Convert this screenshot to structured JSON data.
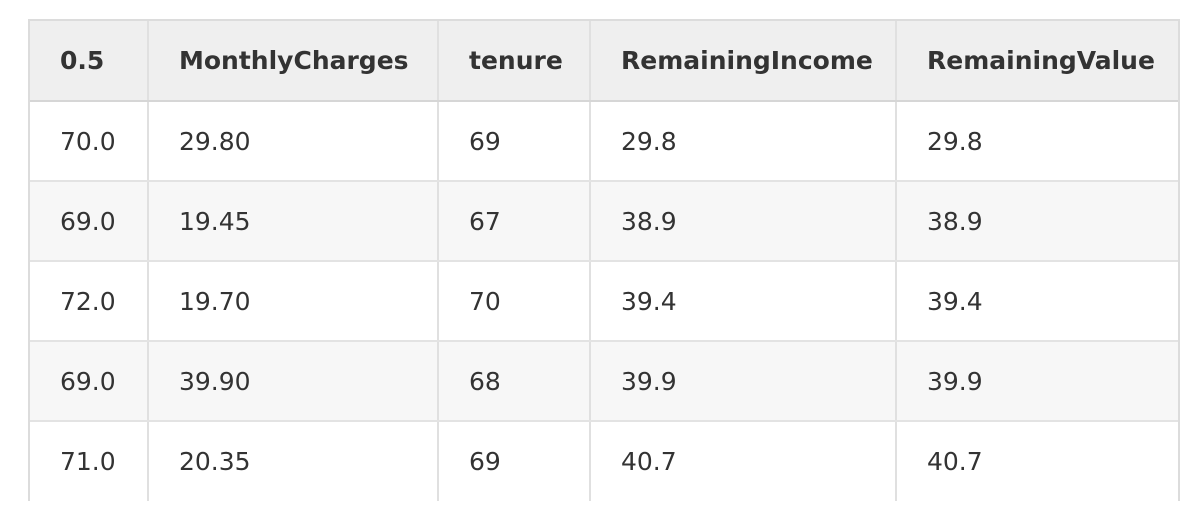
{
  "table": {
    "columns": [
      "0.5",
      "MonthlyCharges",
      "tenure",
      "RemainingIncome",
      "RemainingValue"
    ],
    "rows": [
      [
        "70.0",
        "29.80",
        "69",
        "29.8",
        "29.8"
      ],
      [
        "69.0",
        "19.45",
        "67",
        "38.9",
        "38.9"
      ],
      [
        "72.0",
        "19.70",
        "70",
        "39.4",
        "39.4"
      ],
      [
        "69.0",
        "39.90",
        "68",
        "39.9",
        "39.9"
      ],
      [
        "71.0",
        "20.35",
        "69",
        "40.7",
        "40.7"
      ]
    ]
  },
  "colors": {
    "header_bg": "#efefef",
    "row_alt_bg": "#f7f7f7",
    "border": "#dcdcdc",
    "text": "#333333"
  }
}
